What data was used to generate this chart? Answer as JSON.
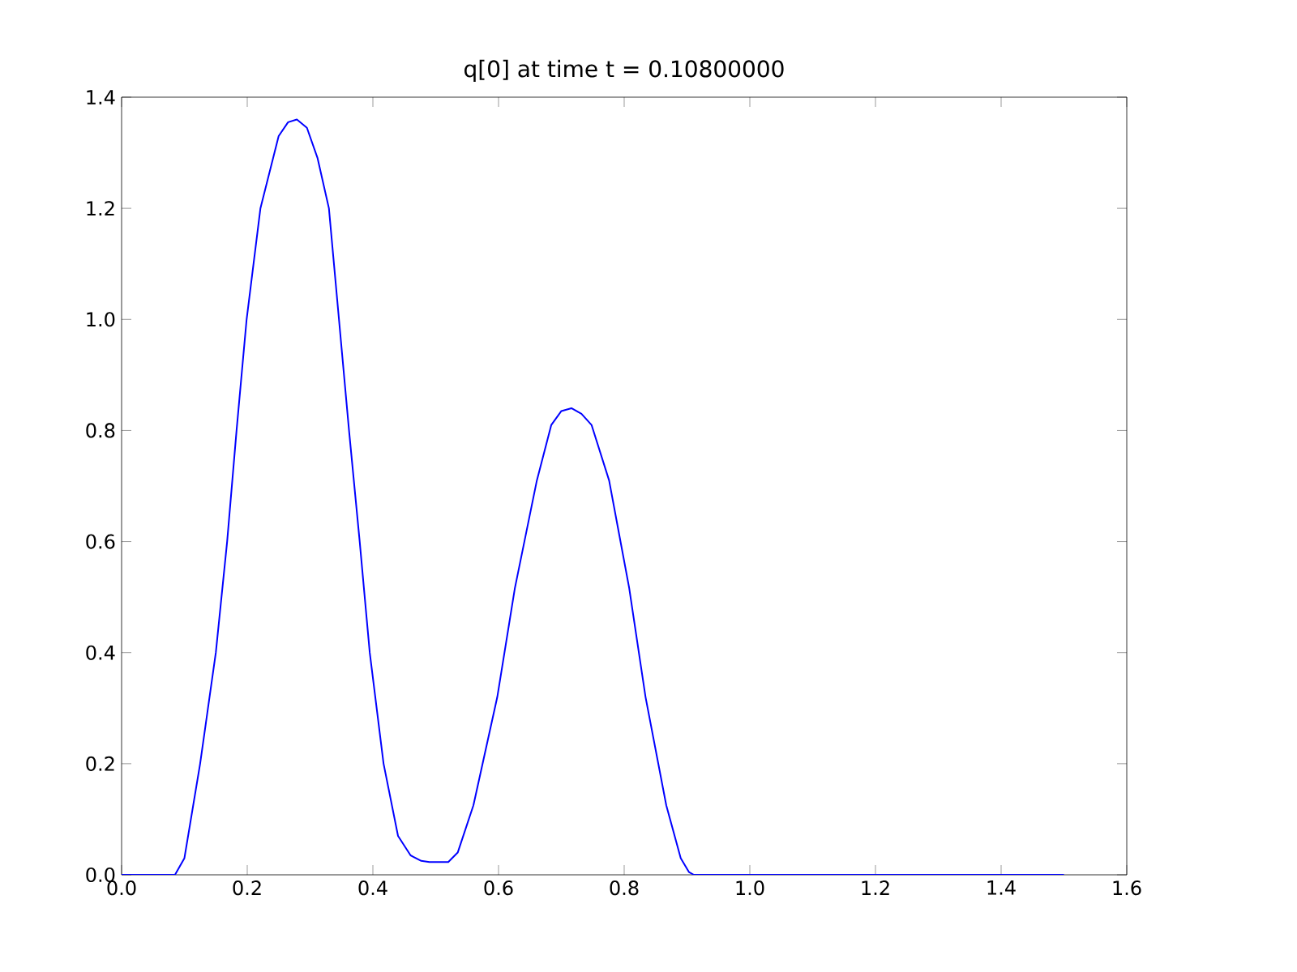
{
  "chart_data": {
    "type": "line",
    "title": "q[0] at time t =     0.10800000",
    "x": [
      0.0,
      0.085,
      0.1,
      0.125,
      0.15,
      0.168,
      0.183,
      0.199,
      0.221,
      0.25,
      0.265,
      0.279,
      0.295,
      0.312,
      0.33,
      0.346,
      0.362,
      0.379,
      0.395,
      0.417,
      0.44,
      0.46,
      0.477,
      0.49,
      0.52,
      0.535,
      0.56,
      0.598,
      0.626,
      0.661,
      0.684,
      0.7,
      0.716,
      0.732,
      0.748,
      0.776,
      0.808,
      0.834,
      0.867,
      0.89,
      0.903,
      0.911,
      1.5
    ],
    "series": [
      {
        "color": "#0000ff",
        "values": [
          0.0,
          0.0,
          0.03,
          0.2,
          0.4,
          0.6,
          0.8,
          1.0,
          1.2,
          1.33,
          1.355,
          1.36,
          1.345,
          1.29,
          1.2,
          1.0,
          0.8,
          0.6,
          0.4,
          0.2,
          0.07,
          0.035,
          0.025,
          0.023,
          0.023,
          0.04,
          0.125,
          0.32,
          0.516,
          0.71,
          0.81,
          0.835,
          0.84,
          0.83,
          0.81,
          0.71,
          0.516,
          0.32,
          0.125,
          0.03,
          0.005,
          0.0,
          0.0
        ]
      }
    ],
    "xlim": [
      0.0,
      1.6
    ],
    "ylim": [
      0.0,
      1.4
    ],
    "xticks": [
      {
        "value": 0.0,
        "label": "0.0"
      },
      0.2,
      0.4,
      0.6,
      0.8,
      {
        "value": 1.0,
        "label": "1.0"
      },
      1.2,
      1.4,
      1.6
    ],
    "yticks": [
      {
        "value": 0.0,
        "label": "0.0"
      },
      0.2,
      0.4,
      0.6,
      0.8,
      {
        "value": 1.0,
        "label": "1.0"
      },
      1.2,
      1.4
    ],
    "marker": "none",
    "line_style": "solid"
  }
}
